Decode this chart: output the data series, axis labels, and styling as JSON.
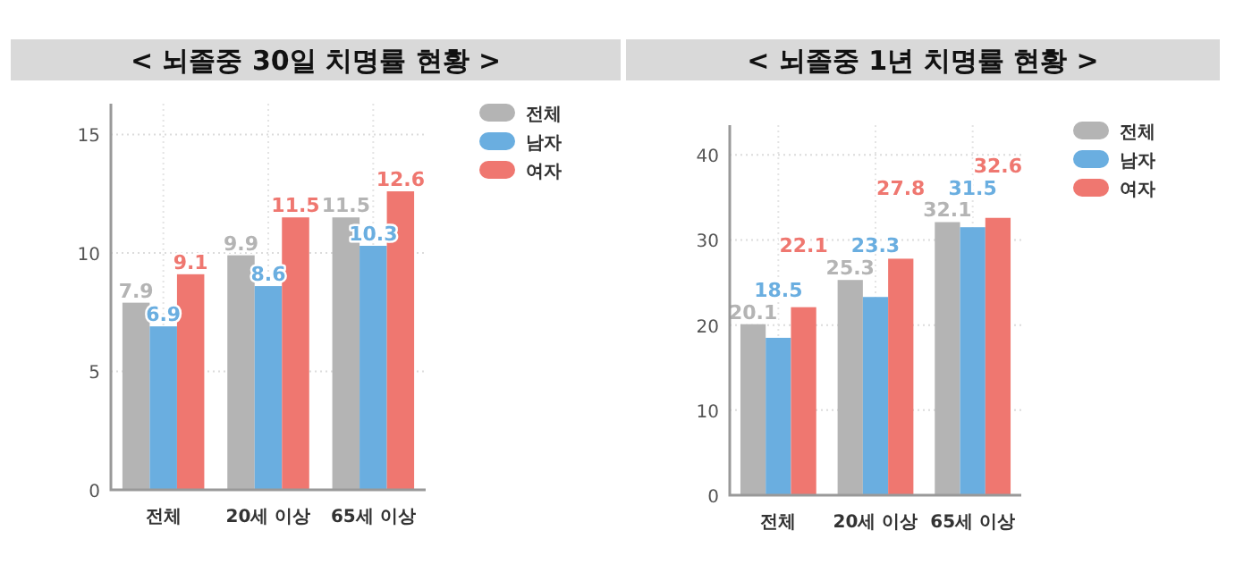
{
  "chart_data": [
    {
      "type": "bar",
      "title": "< 뇌졸중 30일 치명률 현황 >",
      "categories": [
        "전체",
        "20세 이상",
        "65세 이상"
      ],
      "series": [
        {
          "name": "전체",
          "color": "#b4b4b4",
          "values": [
            7.9,
            9.9,
            11.5
          ]
        },
        {
          "name": "남자",
          "color": "#6aaee0",
          "values": [
            6.9,
            8.6,
            10.3
          ]
        },
        {
          "name": "여자",
          "color": "#ef7770",
          "values": [
            9.1,
            11.5,
            12.6
          ]
        }
      ],
      "ylim": [
        0,
        16.3
      ],
      "yticks": [
        0,
        5,
        10,
        15
      ],
      "grid": true,
      "legend": "right",
      "data_labels": true
    },
    {
      "type": "bar",
      "title": "< 뇌졸중 1년 치명률 현황 >",
      "categories": [
        "전체",
        "20세 이상",
        "65세 이상"
      ],
      "series": [
        {
          "name": "전체",
          "color": "#b4b4b4",
          "values": [
            20.1,
            25.3,
            32.1
          ]
        },
        {
          "name": "남자",
          "color": "#6aaee0",
          "values": [
            18.5,
            23.3,
            31.5
          ]
        },
        {
          "name": "여자",
          "color": "#ef7770",
          "values": [
            22.1,
            27.8,
            32.6
          ]
        }
      ],
      "ylim": [
        0,
        43.5
      ],
      "yticks": [
        0,
        10,
        20,
        30,
        40
      ],
      "grid": true,
      "legend": "right",
      "data_labels": true
    }
  ]
}
